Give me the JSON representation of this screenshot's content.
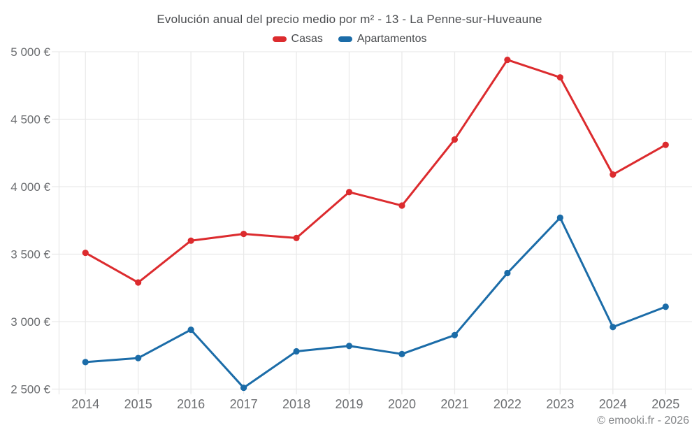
{
  "chart": {
    "title": "Evolución anual del precio medio por m² - 13 - La Penne-sur-Huveaune",
    "legend": [
      {
        "label": "Casas",
        "color": "#dc2b2e"
      },
      {
        "label": "Apartamentos",
        "color": "#1b6ca8"
      }
    ],
    "footer": "© emooki.fr - 2026"
  },
  "chart_data": {
    "type": "line",
    "title": "Evolución anual del precio medio por m² - 13 - La Penne-sur-Huveaune",
    "categories": [
      "2014",
      "2015",
      "2016",
      "2017",
      "2018",
      "2019",
      "2020",
      "2021",
      "2022",
      "2023",
      "2024",
      "2025"
    ],
    "series": [
      {
        "name": "Casas",
        "color": "#dc2b2e",
        "values": [
          3510,
          3290,
          3600,
          3650,
          3620,
          3960,
          3860,
          4350,
          4940,
          4810,
          4090,
          4310
        ]
      },
      {
        "name": "Apartamentos",
        "color": "#1b6ca8",
        "values": [
          2700,
          2730,
          2940,
          2510,
          2780,
          2820,
          2760,
          2900,
          3360,
          3770,
          2960,
          3110
        ]
      }
    ],
    "xlabel": "",
    "ylabel": "",
    "ylim": [
      2500,
      5000
    ],
    "y_ticks": [
      {
        "value": 5000,
        "label": "5 000 €"
      },
      {
        "value": 4500,
        "label": "4 500 €"
      },
      {
        "value": 4000,
        "label": "4 000 €"
      },
      {
        "value": 3500,
        "label": "3 500 €"
      },
      {
        "value": 3000,
        "label": "3 000 €"
      },
      {
        "value": 2500,
        "label": "2 500 €"
      }
    ],
    "grid": true,
    "legend_position": "top",
    "marker": "circle",
    "annotation": "© emooki.fr - 2026"
  },
  "style": {
    "grid_color": "#e9e9e9",
    "tick_label_color": "#6c6e71",
    "title_color": "#4b4d50",
    "footer_color": "#85878a"
  }
}
